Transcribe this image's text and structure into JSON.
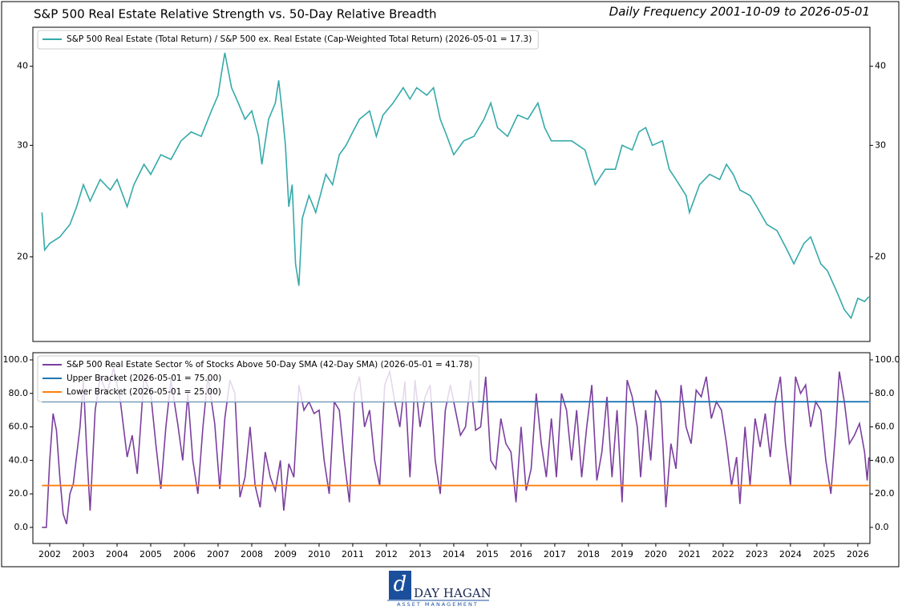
{
  "title": "S&P 500 Real Estate Relative Strength vs. 50-Day Relative Breadth",
  "subtitle": "Daily Frequency 2001-10-09 to 2026-05-01",
  "logo": {
    "name": "DAY HAGAN",
    "tagline": "ASSET MANAGEMENT"
  },
  "chart_data": [
    {
      "type": "line",
      "yscale": "log",
      "ylim": [
        14.7,
        46.1
      ],
      "yticks": [
        20,
        30,
        40
      ],
      "xlim": [
        2001.5,
        2026.36
      ],
      "legend": "upper left",
      "grid": false,
      "series": [
        {
          "name": "S&P 500 Real Estate (Total Return) / S&P 500 ex. Real Estate (Cap-Weighted Total Return) (2026-05-01 = 17.3)",
          "color": "#35a9a9",
          "x": [
            2001.77,
            2001.85,
            2002.0,
            2002.3,
            2002.6,
            2002.8,
            2003.0,
            2003.2,
            2003.5,
            2003.8,
            2004.0,
            2004.3,
            2004.5,
            2004.8,
            2005.0,
            2005.3,
            2005.6,
            2005.9,
            2006.2,
            2006.5,
            2006.8,
            2007.0,
            2007.1,
            2007.2,
            2007.4,
            2007.6,
            2007.8,
            2008.0,
            2008.2,
            2008.3,
            2008.5,
            2008.7,
            2008.8,
            2008.9,
            2009.0,
            2009.1,
            2009.2,
            2009.3,
            2009.4,
            2009.5,
            2009.7,
            2009.9,
            2010.2,
            2010.4,
            2010.6,
            2010.8,
            2011.0,
            2011.2,
            2011.5,
            2011.7,
            2011.9,
            2012.2,
            2012.5,
            2012.7,
            2012.9,
            2013.2,
            2013.4,
            2013.6,
            2013.8,
            2014.0,
            2014.3,
            2014.6,
            2014.9,
            2015.1,
            2015.3,
            2015.6,
            2015.9,
            2016.2,
            2016.5,
            2016.7,
            2016.9,
            2017.2,
            2017.5,
            2017.9,
            2018.2,
            2018.5,
            2018.8,
            2019.0,
            2019.3,
            2019.5,
            2019.7,
            2019.9,
            2020.2,
            2020.4,
            2020.6,
            2020.9,
            2021.0,
            2021.3,
            2021.6,
            2021.9,
            2022.1,
            2022.3,
            2022.5,
            2022.8,
            2023.0,
            2023.3,
            2023.6,
            2023.9,
            2024.1,
            2024.4,
            2024.6,
            2024.9,
            2025.1,
            2025.4,
            2025.6,
            2025.8,
            2026.0,
            2026.2,
            2026.33
          ],
          "values": [
            23.5,
            20.5,
            21,
            21.5,
            22.5,
            24,
            26,
            24.5,
            26.5,
            25.5,
            26.5,
            24,
            26,
            28,
            27,
            29,
            28.5,
            30.5,
            31.5,
            31,
            34,
            36,
            39,
            42,
            37,
            35,
            33,
            34,
            31,
            28,
            33,
            35,
            38,
            34,
            30,
            24,
            26,
            19.5,
            18,
            23,
            25,
            23.5,
            27,
            26,
            29,
            30,
            31.5,
            33,
            34,
            31,
            33.5,
            35,
            37,
            35.5,
            37,
            36,
            37,
            33,
            31,
            29,
            30.5,
            31,
            33,
            35,
            32,
            31,
            33.5,
            33,
            35,
            32,
            30.5,
            30.5,
            30.5,
            29.5,
            26,
            27.5,
            27.5,
            30,
            29.5,
            31.5,
            32,
            30,
            30.5,
            27.5,
            26.5,
            25,
            23.5,
            26,
            27,
            26.5,
            28,
            27,
            25.5,
            25,
            24,
            22.5,
            22,
            20.5,
            19.5,
            21,
            21.5,
            19.5,
            19,
            17.5,
            16.5,
            16,
            17.2,
            17,
            17.3
          ]
        }
      ]
    },
    {
      "type": "line",
      "ylim": [
        -9.6,
        104.3
      ],
      "yticks": [
        {
          "value": 0,
          "label": "0.0"
        },
        {
          "value": 20,
          "label": "20.0"
        },
        {
          "value": 40,
          "label": "40.0"
        },
        {
          "value": 60,
          "label": "60.0"
        },
        {
          "value": 80,
          "label": "80.0"
        },
        {
          "value": 100,
          "label": "100.0"
        }
      ],
      "xlim": [
        2001.5,
        2026.36
      ],
      "xticks": [
        2002,
        2003,
        2004,
        2005,
        2006,
        2007,
        2008,
        2009,
        2010,
        2011,
        2012,
        2013,
        2014,
        2015,
        2016,
        2017,
        2018,
        2019,
        2020,
        2021,
        2022,
        2023,
        2024,
        2025,
        2026
      ],
      "legend": "upper left",
      "grid": false,
      "series": [
        {
          "name": "S&P 500 Real Estate Sector % of Stocks Above 50-Day SMA (42-Day SMA) (2026-05-01 = 41.78)",
          "color": "#7b3f9e",
          "x": [
            2001.77,
            2001.9,
            2002.0,
            2002.1,
            2002.2,
            2002.3,
            2002.4,
            2002.5,
            2002.6,
            2002.7,
            2002.9,
            2003.0,
            2003.1,
            2003.2,
            2003.35,
            2003.5,
            2003.7,
            2003.9,
            2004.1,
            2004.3,
            2004.45,
            2004.6,
            2004.8,
            2005.0,
            2005.15,
            2005.3,
            2005.45,
            2005.6,
            2005.8,
            2005.95,
            2006.1,
            2006.25,
            2006.4,
            2006.55,
            2006.7,
            2006.9,
            2007.05,
            2007.2,
            2007.35,
            2007.5,
            2007.65,
            2007.8,
            2007.95,
            2008.1,
            2008.25,
            2008.4,
            2008.55,
            2008.7,
            2008.85,
            2008.95,
            2009.1,
            2009.25,
            2009.4,
            2009.55,
            2009.7,
            2009.85,
            2010.0,
            2010.15,
            2010.3,
            2010.45,
            2010.6,
            2010.75,
            2010.9,
            2011.05,
            2011.2,
            2011.35,
            2011.5,
            2011.65,
            2011.8,
            2011.95,
            2012.1,
            2012.25,
            2012.4,
            2012.55,
            2012.7,
            2012.85,
            2013.0,
            2013.15,
            2013.3,
            2013.45,
            2013.6,
            2013.75,
            2013.9,
            2014.05,
            2014.2,
            2014.35,
            2014.5,
            2014.65,
            2014.8,
            2014.95,
            2015.1,
            2015.25,
            2015.4,
            2015.55,
            2015.7,
            2015.85,
            2016.0,
            2016.15,
            2016.3,
            2016.45,
            2016.6,
            2016.75,
            2016.9,
            2017.05,
            2017.2,
            2017.35,
            2017.5,
            2017.65,
            2017.8,
            2017.95,
            2018.1,
            2018.25,
            2018.4,
            2018.55,
            2018.7,
            2018.85,
            2019.0,
            2019.15,
            2019.3,
            2019.45,
            2019.55,
            2019.7,
            2019.85,
            2020.0,
            2020.15,
            2020.3,
            2020.45,
            2020.6,
            2020.75,
            2020.9,
            2021.05,
            2021.2,
            2021.35,
            2021.5,
            2021.65,
            2021.8,
            2021.95,
            2022.1,
            2022.25,
            2022.4,
            2022.5,
            2022.65,
            2022.8,
            2022.95,
            2023.1,
            2023.25,
            2023.4,
            2023.55,
            2023.7,
            2023.85,
            2024.0,
            2024.15,
            2024.3,
            2024.45,
            2024.6,
            2024.75,
            2024.9,
            2025.05,
            2025.2,
            2025.35,
            2025.45,
            2025.6,
            2025.75,
            2025.9,
            2026.05,
            2026.2,
            2026.28,
            2026.33
          ],
          "values": [
            0,
            0,
            40,
            68,
            58,
            30,
            8,
            2,
            20,
            26,
            60,
            88,
            45,
            10,
            70,
            90,
            80,
            95,
            75,
            42,
            55,
            32,
            90,
            80,
            50,
            23,
            60,
            88,
            62,
            40,
            80,
            40,
            20,
            60,
            90,
            62,
            23,
            65,
            88,
            80,
            18,
            30,
            60,
            25,
            12,
            45,
            30,
            22,
            40,
            10,
            38,
            30,
            85,
            70,
            75,
            68,
            70,
            40,
            20,
            75,
            70,
            40,
            15,
            80,
            90,
            60,
            70,
            40,
            25,
            85,
            93,
            75,
            60,
            87,
            30,
            88,
            60,
            78,
            85,
            40,
            20,
            70,
            85,
            70,
            55,
            60,
            88,
            58,
            60,
            90,
            40,
            35,
            65,
            50,
            45,
            15,
            60,
            22,
            35,
            80,
            50,
            30,
            65,
            30,
            80,
            70,
            40,
            70,
            30,
            60,
            85,
            28,
            45,
            78,
            30,
            70,
            15,
            88,
            78,
            60,
            30,
            70,
            40,
            82,
            75,
            12,
            50,
            35,
            85,
            60,
            50,
            82,
            78,
            90,
            65,
            75,
            70,
            50,
            25,
            42,
            14,
            60,
            25,
            65,
            48,
            68,
            42,
            75,
            90,
            50,
            25,
            90,
            80,
            85,
            60,
            75,
            70,
            40,
            20,
            60,
            93,
            75,
            50,
            55,
            62,
            45,
            28,
            41.78
          ]
        },
        {
          "name": "Upper Bracket (2026-05-01 = 75.00)",
          "color": "#1f77b4",
          "x": [
            2001.77,
            2026.33
          ],
          "values": [
            75,
            75
          ]
        },
        {
          "name": "Lower Bracket (2026-05-01 = 25.00)",
          "color": "#ff7f0e",
          "x": [
            2001.77,
            2026.33
          ],
          "values": [
            25,
            25
          ]
        }
      ]
    }
  ]
}
